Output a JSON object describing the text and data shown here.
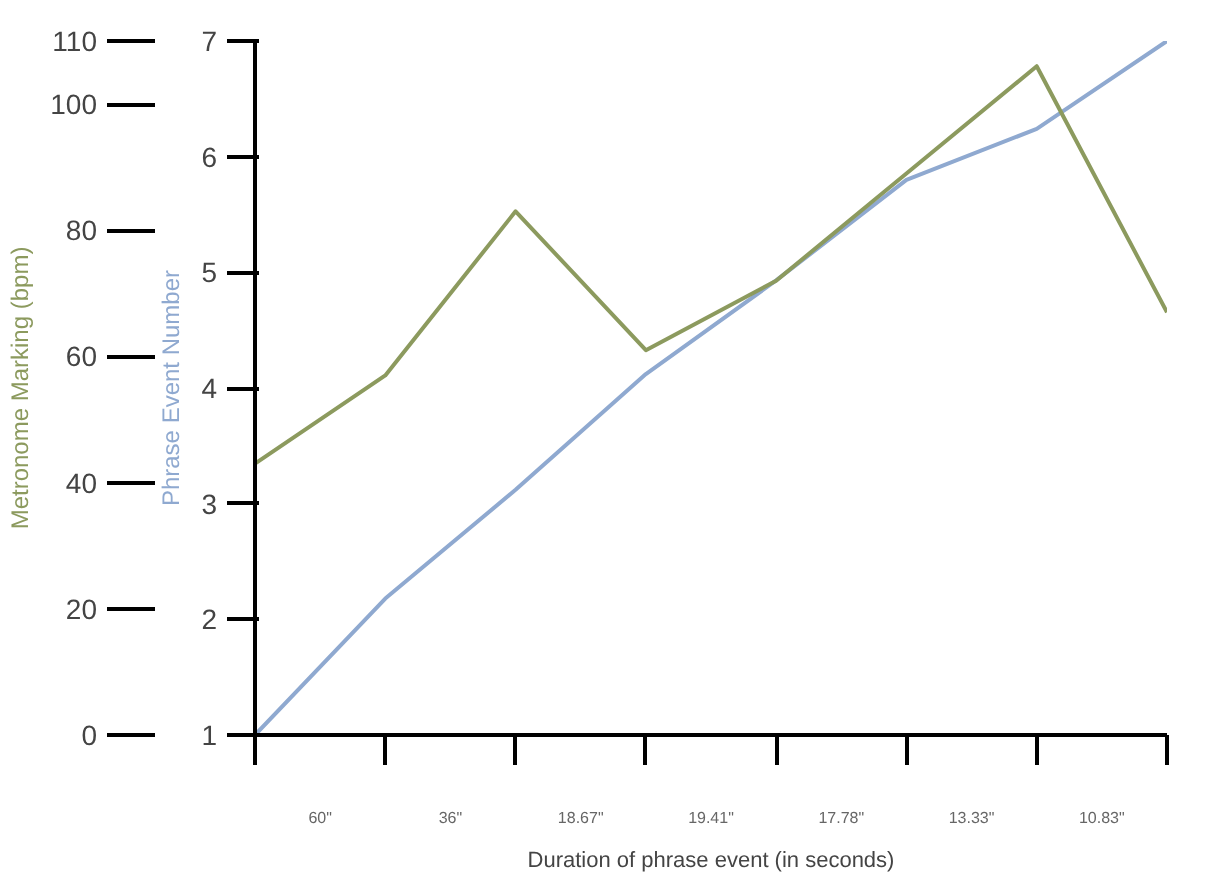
{
  "chart_data": {
    "type": "line",
    "xlabel": "Duration of phrase event (in seconds)",
    "ylabel": "Phrase Event Number",
    "y2label": "Metronome Marking (bpm)",
    "categories": [
      null,
      null,
      null,
      null,
      null,
      null,
      null,
      null
    ],
    "annotations": [
      "60\"",
      "36\"",
      "18.67\"",
      "19.41\"",
      "17.78\"",
      "13.33\"",
      "10.83\""
    ],
    "ylim": [
      1,
      7
    ],
    "yticks": [
      1,
      2,
      3,
      4,
      5,
      6,
      7
    ],
    "y2lim": [
      0,
      110
    ],
    "y2ticks": [
      0,
      20,
      40,
      60,
      80,
      100,
      110
    ],
    "series": [
      {
        "color": "#8fa9d0",
        "values": [
          1,
          2.18,
          3.12,
          4.12,
          4.93,
          5.8,
          6.24,
          7
        ]
      },
      {
        "color": "#8c9a5e",
        "axis": "y2",
        "values": [
          43,
          57,
          83,
          61,
          72,
          89,
          106,
          67
        ]
      }
    ],
    "grid": false,
    "marker": "none",
    "line_style": "solid"
  }
}
